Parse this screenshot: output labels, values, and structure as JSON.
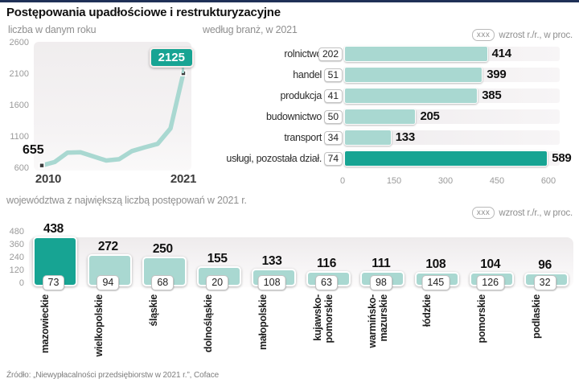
{
  "header": {
    "title": "Postępowania upadłościowe i restrukturyzacyjne"
  },
  "legend": {
    "badge": "xxx",
    "label": "wzrost r./r., w proc."
  },
  "colors": {
    "accent": "#17a493",
    "accent_light": "#a9d8d1",
    "track": "#f1eef0",
    "navy": "#1f3057",
    "marker": "#3c3c3c"
  },
  "chart_data": [
    {
      "type": "line",
      "title": "liczba w danym roku",
      "x": [
        2010,
        2011,
        2012,
        2013,
        2014,
        2015,
        2016,
        2017,
        2018,
        2019,
        2020,
        2021
      ],
      "values": [
        655,
        710,
        860,
        865,
        800,
        735,
        755,
        885,
        945,
        1000,
        1245,
        2125
      ],
      "ylim": [
        600,
        2600
      ],
      "yticks": [
        2600,
        2100,
        1600,
        1100,
        600
      ],
      "xtick_labels": [
        "2010",
        "2021"
      ],
      "start_label": "655",
      "end_label": "2125",
      "grid": false,
      "legend_position": "none"
    },
    {
      "type": "bar",
      "orientation": "horizontal",
      "title": "według branż, w 2021",
      "categories": [
        "rolnictwo",
        "handel",
        "produkcja",
        "budownictwo",
        "transport",
        "usługi, pozostała dział."
      ],
      "values": [
        414,
        399,
        385,
        205,
        133,
        589
      ],
      "growth_badges": [
        202,
        51,
        41,
        50,
        34,
        74
      ],
      "xlim": [
        0,
        600
      ],
      "xticks": [
        0,
        150,
        300,
        450,
        600
      ],
      "highlight_index": 5,
      "legend_position": "top-right"
    },
    {
      "type": "bar",
      "orientation": "vertical",
      "title": "województwa z największą liczbą postępowań w 2021 r.",
      "categories": [
        "mazowieckie",
        "wielkopolskie",
        "śląskie",
        "dolnośląskie",
        "małopolskie",
        "kujawsko-\npomorskie",
        "warmińsko-\nmazurskie",
        "łódzkie",
        "pomorskie",
        "podlaskie"
      ],
      "values": [
        438,
        272,
        250,
        155,
        133,
        116,
        111,
        108,
        104,
        96
      ],
      "growth_badges": [
        73,
        94,
        68,
        20,
        108,
        63,
        98,
        145,
        126,
        32
      ],
      "ylim": [
        0,
        480
      ],
      "yticks": [
        480,
        360,
        240,
        120,
        0
      ],
      "highlight_index": 0,
      "legend_position": "top-right"
    }
  ],
  "footer": {
    "source": "Źródło: „Niewypłacalności przedsiębiorstw w 2021 r.”, Coface"
  }
}
